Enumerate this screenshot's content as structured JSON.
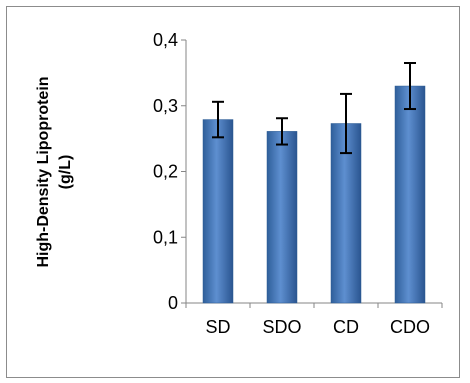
{
  "chart_data": {
    "type": "bar",
    "categories": [
      "SD",
      "SDO",
      "CD",
      "CDO"
    ],
    "values": [
      0.279,
      0.261,
      0.273,
      0.33
    ],
    "error": [
      0.027,
      0.02,
      0.045,
      0.035
    ],
    "ylabel_line1": "High-Density Lipoprotein",
    "ylabel_line2": "(g/L)",
    "ylim": [
      0,
      0.4
    ],
    "yticks": [
      "0",
      "0,1",
      "0,2",
      "0,3",
      "0,4"
    ],
    "grid": false,
    "legend": "none",
    "bar_color": "#4f81bd",
    "bar_color_dark": "#2a5a92"
  }
}
